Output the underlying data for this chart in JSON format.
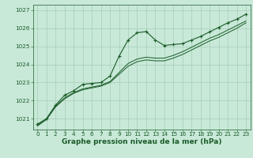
{
  "bg_color": "#c8e8d8",
  "grid_color": "#a0c8b0",
  "line_color": "#1a5c28",
  "marker_color": "#1a5c28",
  "xlabel": "Graphe pression niveau de la mer (hPa)",
  "ylim": [
    1020.4,
    1027.3
  ],
  "xlim": [
    -0.5,
    23.5
  ],
  "yticks": [
    1021,
    1022,
    1023,
    1024,
    1025,
    1026,
    1027
  ],
  "xticks": [
    0,
    1,
    2,
    3,
    4,
    5,
    6,
    7,
    8,
    9,
    10,
    11,
    12,
    13,
    14,
    15,
    16,
    17,
    18,
    19,
    20,
    21,
    22,
    23
  ],
  "series1_x": [
    0,
    1,
    2,
    3,
    4,
    5,
    6,
    7,
    8,
    9,
    10,
    11,
    12,
    13,
    14,
    15,
    16,
    17,
    18,
    19,
    20,
    21,
    22,
    23
  ],
  "series1_y": [
    1020.7,
    1021.0,
    1021.75,
    1022.3,
    1022.55,
    1022.9,
    1022.95,
    1023.0,
    1023.35,
    1024.45,
    1025.35,
    1025.75,
    1025.82,
    1025.35,
    1025.05,
    1025.1,
    1025.15,
    1025.35,
    1025.55,
    1025.8,
    1026.05,
    1026.3,
    1026.5,
    1026.78
  ],
  "series2_x": [
    0,
    1,
    2,
    3,
    4,
    5,
    6,
    7,
    8,
    9,
    10,
    11,
    12,
    13,
    14,
    15,
    16,
    17,
    18,
    19,
    20,
    21,
    22,
    23
  ],
  "series2_y": [
    1020.65,
    1021.0,
    1021.7,
    1022.15,
    1022.45,
    1022.65,
    1022.75,
    1022.85,
    1023.05,
    1023.55,
    1024.05,
    1024.3,
    1024.4,
    1024.35,
    1024.35,
    1024.5,
    1024.7,
    1024.95,
    1025.2,
    1025.45,
    1025.65,
    1025.9,
    1026.15,
    1026.4
  ],
  "series3_x": [
    0,
    1,
    2,
    3,
    4,
    5,
    6,
    7,
    8,
    9,
    10,
    11,
    12,
    13,
    14,
    15,
    16,
    17,
    18,
    19,
    20,
    21,
    22,
    23
  ],
  "series3_y": [
    1020.6,
    1020.95,
    1021.65,
    1022.1,
    1022.4,
    1022.6,
    1022.7,
    1022.8,
    1023.0,
    1023.45,
    1023.9,
    1024.15,
    1024.25,
    1024.2,
    1024.2,
    1024.35,
    1024.55,
    1024.8,
    1025.05,
    1025.3,
    1025.5,
    1025.75,
    1026.0,
    1026.3
  ],
  "ticker_fontsize": 5.2,
  "label_fontsize": 6.5
}
